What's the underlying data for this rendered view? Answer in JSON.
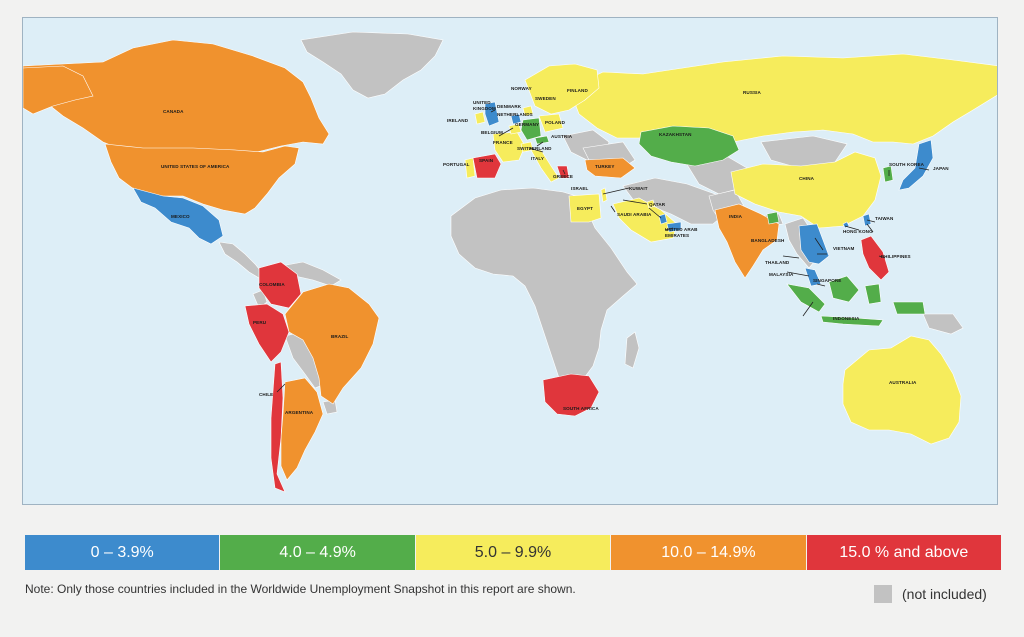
{
  "colors": {
    "ocean": "#ddeef7",
    "not_included": "#c2c2c2",
    "band_0_3_9": "#3d8bcd",
    "band_4_4_9": "#53ad4a",
    "band_5_9_9": "#f6ec5c",
    "band_10_14_9": "#f0922e",
    "band_15_plus": "#e0363c"
  },
  "legend": [
    {
      "label": "0 – 3.9%",
      "color": "#3d8bcd"
    },
    {
      "label": "4.0 – 4.9%",
      "color": "#53ad4a"
    },
    {
      "label": "5.0 – 9.9%",
      "color": "#f6ec5c"
    },
    {
      "label": "10.0 – 14.9%",
      "color": "#f0922e"
    },
    {
      "label": "15.0 % and above",
      "color": "#e0363c"
    }
  ],
  "note": "Note:  Only those countries included in the Worldwide Unemployment Snapshot in this report are shown.",
  "not_included_label": "(not included)",
  "countries": {
    "canada": {
      "name": "CANADA",
      "band": "10.0 – 14.9%"
    },
    "usa": {
      "name": "UNITED STATES OF AMERICA",
      "band": "10.0 – 14.9%"
    },
    "mexico": {
      "name": "MEXICO",
      "band": "0 – 3.9%"
    },
    "colombia": {
      "name": "COLOMBIA",
      "band": "15.0 % and above"
    },
    "peru": {
      "name": "PERU",
      "band": "15.0 % and above"
    },
    "brazil": {
      "name": "BRAZIL",
      "band": "10.0 – 14.9%"
    },
    "chile": {
      "name": "CHILE",
      "band": "15.0 % and above"
    },
    "argentina": {
      "name": "ARGENTINA",
      "band": "10.0 – 14.9%"
    },
    "norway": {
      "name": "NORWAY",
      "band": "5.0 – 9.9%"
    },
    "sweden": {
      "name": "SWEDEN",
      "band": "5.0 – 9.9%"
    },
    "finland": {
      "name": "FINLAND",
      "band": "5.0 – 9.9%"
    },
    "russia": {
      "name": "RUSSIA",
      "band": "5.0 – 9.9%"
    },
    "united_kingdom": {
      "name": "UNITED KINGDOM",
      "band": "0 – 3.9%"
    },
    "denmark": {
      "name": "DENMARK",
      "band": "5.0 – 9.9%"
    },
    "netherlands": {
      "name": "NETHERLANDS",
      "band": "0 – 3.9%"
    },
    "ireland": {
      "name": "IRELAND",
      "band": "5.0 – 9.9%"
    },
    "germany": {
      "name": "GERMANY",
      "band": "4.0 – 4.9%"
    },
    "poland": {
      "name": "POLAND",
      "band": "5.0 – 9.9%"
    },
    "belgium": {
      "name": "BELGIUM",
      "band": "5.0 – 9.9%"
    },
    "austria": {
      "name": "AUSTRIA",
      "band": "4.0 – 4.9%"
    },
    "france": {
      "name": "FRANCE",
      "band": "5.0 – 9.9%"
    },
    "switzerland": {
      "name": "SWITZERLAND",
      "band": "5.0 – 9.9%"
    },
    "kazakhstan": {
      "name": "KAZAKHSTAN",
      "band": "4.0 – 4.9%"
    },
    "portugal": {
      "name": "PORTUGAL",
      "band": "5.0 – 9.9%"
    },
    "spain": {
      "name": "SPAIN",
      "band": "15.0 % and above"
    },
    "italy": {
      "name": "ITALY",
      "band": "5.0 – 9.9%"
    },
    "greece": {
      "name": "GREECE",
      "band": "15.0 % and above"
    },
    "turkey": {
      "name": "TURKEY",
      "band": "10.0 – 14.9%"
    },
    "israel": {
      "name": "ISRAEL",
      "band": "5.0 – 9.9%"
    },
    "kuwait": {
      "name": "KUWAIT",
      "band": "5.0 – 9.9%"
    },
    "egypt": {
      "name": "EGYPT",
      "band": "5.0 – 9.9%"
    },
    "qatar": {
      "name": "QATAR",
      "band": "0 – 3.9%"
    },
    "saudi_arabia": {
      "name": "SAUDI ARABIA",
      "band": "5.0 – 9.9%"
    },
    "uae": {
      "name": "UNITED ARAB EMIRATES",
      "band": "0 – 3.9%"
    },
    "china": {
      "name": "CHINA",
      "band": "5.0 – 9.9%"
    },
    "south_korea": {
      "name": "SOUTH KOREA",
      "band": "4.0 – 4.9%"
    },
    "japan": {
      "name": "JAPAN",
      "band": "0 – 3.9%"
    },
    "india": {
      "name": "INDIA",
      "band": "10.0 – 14.9%"
    },
    "bangladesh": {
      "name": "BANGLADESH",
      "band": "4.0 – 4.9%"
    },
    "taiwan": {
      "name": "TAIWAN",
      "band": "0 – 3.9%"
    },
    "hong_kong": {
      "name": "HONG KONG",
      "band": "0 – 3.9%"
    },
    "vietnam": {
      "name": "VIETNAM",
      "band": "0 – 3.9%"
    },
    "thailand": {
      "name": "THAILAND",
      "band": "0 – 3.9%"
    },
    "philippines": {
      "name": "PHILIPPINES",
      "band": "15.0 % and above"
    },
    "malaysia": {
      "name": "MALAYSIA",
      "band": "0 – 3.9%"
    },
    "singapore": {
      "name": "SINGAPORE",
      "band": "0 – 3.9%"
    },
    "indonesia": {
      "name": "INDONESIA",
      "band": "4.0 – 4.9%"
    },
    "south_africa": {
      "name": "SOUTH AFRICA",
      "band": "15.0 % and above"
    },
    "australia": {
      "name": "AUSTRALIA",
      "band": "5.0 – 9.9%"
    }
  }
}
